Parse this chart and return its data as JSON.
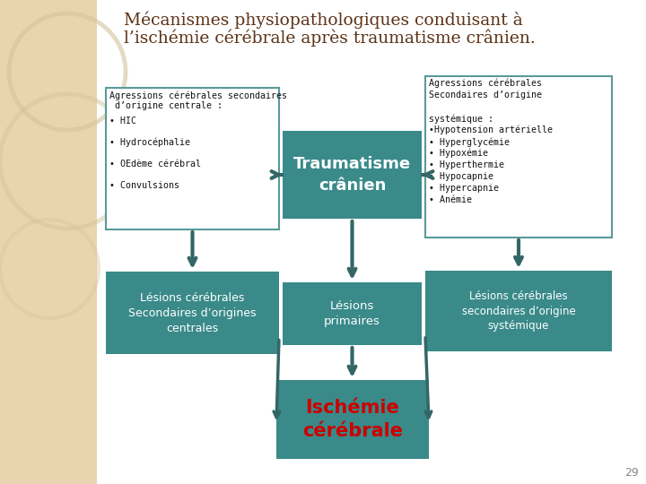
{
  "title_line1": "Mécanismes physiopathologiques conduisant à",
  "title_line2": "l’ischémie cérébrale après traumatisme crânien.",
  "title_color": "#5c3317",
  "bg_left_color": "#e8d5b0",
  "slide_bg": "#f0e8d8",
  "teal_box_color": "#3a8a8a",
  "arrow_color": "#336666",
  "left_box_line1": "Agressions cérébrales secondaires",
  "left_box_line2": " d’origine centrale :",
  "left_box_items": [
    "• HIC",
    "• Hydrocéphalie",
    "• OEdème cérébral",
    "• Convulsions"
  ],
  "right_box_title1": "Agressions cérébrales",
  "right_box_title2": "Secondaires d’origine",
  "right_box_title3": "",
  "right_box_title4": "systémique :",
  "right_box_items": [
    "•Hypotension artérielle",
    "• Hyperglycémie",
    "• Hypoxémie",
    "• Hyperthermie",
    "• Hypocapnie",
    "• Hypercapnie",
    "• Anémie"
  ],
  "center_top_box_text": "Traumatisme\ncrânien",
  "bottom_left_box_text": "Lésions cérébrales\nSecondaires d’origines\ncentrales",
  "bottom_center_box_text": "Lésions\nprimaires",
  "bottom_right_box_text": "Lésions cérébrales\nsecondaires d’origine\nsystémique",
  "bottom_final_box_text": "Ischémie\ncérébrale",
  "bottom_final_text_color": "#cc0000",
  "page_number": "29",
  "lw_arrow": 3.0,
  "ms_arrow": 14
}
